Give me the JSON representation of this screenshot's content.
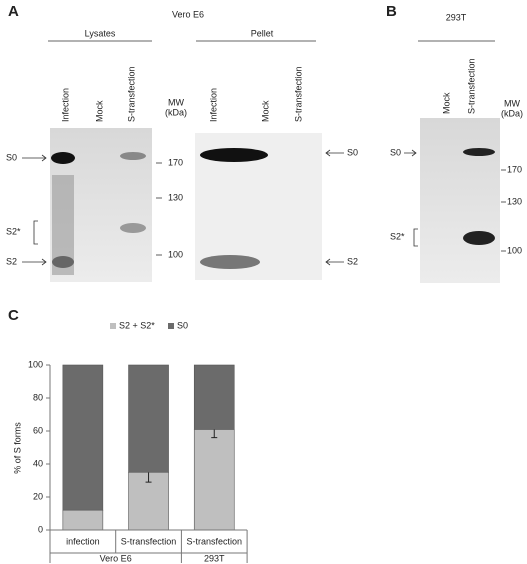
{
  "panel_a": {
    "label": "A",
    "cell_line": "Vero E6",
    "groups": [
      "Lysates",
      "Pellet"
    ],
    "lysate_lanes": [
      "Infection",
      "Mock",
      "S-transfection"
    ],
    "pellet_lanes": [
      "Infection",
      "Mock",
      "S-transfection"
    ],
    "mw_label": "MW",
    "mw_unit": "(kDa)",
    "mw_markers": [
      170,
      130,
      100
    ],
    "band_labels_left": [
      "S0",
      "S2*",
      "S2"
    ],
    "band_labels_right": [
      "S0",
      "S2"
    ]
  },
  "panel_b": {
    "label": "B",
    "cell_line": "293T",
    "lanes": [
      "Mock",
      "S-transfection"
    ],
    "mw_label": "MW",
    "mw_unit": "(kDa)",
    "mw_markers": [
      170,
      130,
      100
    ],
    "band_labels": [
      "S0",
      "S2*"
    ]
  },
  "chart_data": {
    "type": "stacked_bar",
    "panel_label": "C",
    "ylabel": "% of S forms",
    "categories": [
      "infection",
      "S-transfection",
      "S-transfection"
    ],
    "groups": [
      "Vero E6",
      "293T"
    ],
    "series": [
      {
        "name": "S2 + S2*",
        "color": "#bfbfbf",
        "values": [
          12,
          35,
          61
        ],
        "errors": [
          null,
          6,
          5
        ]
      },
      {
        "name": "S0",
        "color": "#6b6b6b",
        "values": [
          88,
          65,
          39
        ]
      }
    ],
    "ylim": [
      0,
      100
    ],
    "yticks": [
      0,
      20,
      40,
      60,
      80,
      100
    ]
  }
}
